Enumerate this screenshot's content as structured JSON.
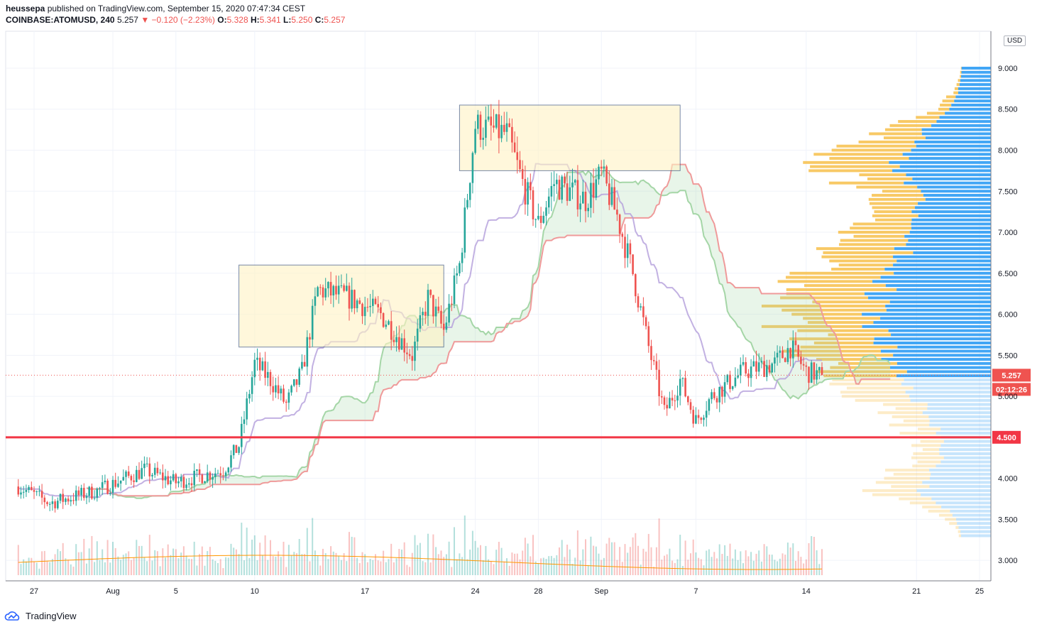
{
  "header": {
    "publisher": "heussepa",
    "published_text": "published on TradingView.com, September 15, 2020 07:47:34 CEST",
    "symbol": "COINBASE:ATOMUSD, 240",
    "last": "5.257",
    "change": "▼ −0.120 (−2.23%)",
    "o_label": "O:",
    "o": "5.328",
    "h_label": "H:",
    "h": "5.341",
    "l_label": "L:",
    "l": "5.250",
    "c_label": "C:",
    "c": "5.257"
  },
  "currency_badge": "USD",
  "footer": {
    "brand": "TradingView"
  },
  "colors": {
    "up": "#26a69a",
    "down": "#ef5350",
    "level": "#f23645",
    "volume_profile_up": "#2196f3",
    "volume_profile_down": "#f7c04a"
  },
  "chart_data": {
    "type": "candlestick",
    "symbol": "ATOMUSD",
    "interval": "240",
    "y_ticks": [
      "9.000",
      "8.500",
      "8.000",
      "7.500",
      "7.000",
      "6.500",
      "6.000",
      "5.500",
      "5.000",
      "4.000",
      "3.500",
      "3.000"
    ],
    "y_range": [
      2.75,
      9.45
    ],
    "x_ticks": [
      "27",
      "Aug",
      "5",
      "10",
      "17",
      "24",
      "28",
      "Sep",
      "7",
      "14",
      "21",
      "25"
    ],
    "last_price_label": "5.257",
    "countdown_label": "02:12:26",
    "horizontal_level": {
      "value": 4.5,
      "label": "4.500"
    },
    "zones": [
      {
        "from_date": "Aug 9",
        "to_date": "Aug 22",
        "low": 5.6,
        "high": 6.6
      },
      {
        "from_date": "Aug 23",
        "to_date": "Sep 6",
        "low": 7.75,
        "high": 8.55
      }
    ],
    "price_path_keypoints": [
      {
        "date": "Jul 26",
        "price": 3.9
      },
      {
        "date": "Jul 28",
        "price": 3.7
      },
      {
        "date": "Jul 31",
        "price": 3.85
      },
      {
        "date": "Aug 3",
        "price": 4.1
      },
      {
        "date": "Aug 5",
        "price": 3.95
      },
      {
        "date": "Aug 8",
        "price": 4.1
      },
      {
        "date": "Aug 9",
        "price": 4.4
      },
      {
        "date": "Aug 10",
        "price": 5.4
      },
      {
        "date": "Aug 11",
        "price": 5.2
      },
      {
        "date": "Aug 12",
        "price": 4.9
      },
      {
        "date": "Aug 13",
        "price": 5.3
      },
      {
        "date": "Aug 14",
        "price": 6.3
      },
      {
        "date": "Aug 16",
        "price": 6.2
      },
      {
        "date": "Aug 18",
        "price": 6.0
      },
      {
        "date": "Aug 20",
        "price": 5.5
      },
      {
        "date": "Aug 21",
        "price": 6.2
      },
      {
        "date": "Aug 22",
        "price": 5.8
      },
      {
        "date": "Aug 23",
        "price": 6.6
      },
      {
        "date": "Aug 24",
        "price": 8.3
      },
      {
        "date": "Aug 26",
        "price": 8.2
      },
      {
        "date": "Aug 27",
        "price": 7.6
      },
      {
        "date": "Aug 28",
        "price": 7.1
      },
      {
        "date": "Aug 29",
        "price": 7.6
      },
      {
        "date": "Aug 31",
        "price": 7.4
      },
      {
        "date": "Sep 1",
        "price": 7.7
      },
      {
        "date": "Sep 2",
        "price": 7.2
      },
      {
        "date": "Sep 3",
        "price": 6.5
      },
      {
        "date": "Sep 4",
        "price": 5.6
      },
      {
        "date": "Sep 5",
        "price": 4.8
      },
      {
        "date": "Sep 6",
        "price": 5.2
      },
      {
        "date": "Sep 7",
        "price": 4.7
      },
      {
        "date": "Sep 8",
        "price": 5.0
      },
      {
        "date": "Sep 10",
        "price": 5.3
      },
      {
        "date": "Sep 12",
        "price": 5.4
      },
      {
        "date": "Sep 13",
        "price": 5.6
      },
      {
        "date": "Sep 14",
        "price": 5.3
      },
      {
        "date": "Sep 15",
        "price": 5.257
      }
    ]
  }
}
